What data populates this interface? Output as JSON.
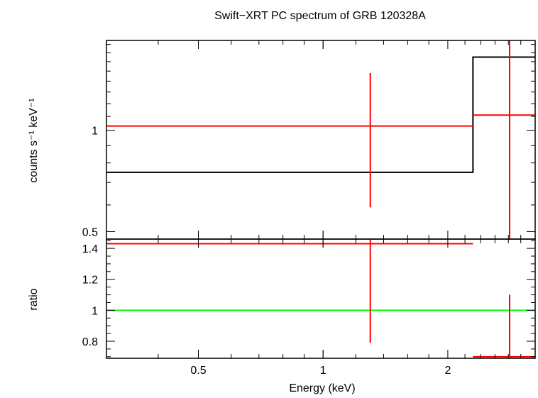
{
  "chart_data": {
    "type": "line",
    "title": "Swift−XRT PC spectrum of GRB 120328A",
    "xlabel": "Energy (keV)",
    "xscale": "log",
    "xlim": [
      0.3,
      3.25
    ],
    "x_ticks": [
      {
        "value": 0.5,
        "label": "0.5"
      },
      {
        "value": 1,
        "label": "1"
      },
      {
        "value": 2,
        "label": "2"
      }
    ],
    "panels": [
      {
        "ylabel": "counts s⁻¹ keV⁻¹",
        "yscale": "log",
        "ylim": [
          0.475,
          1.85
        ],
        "y_ticks": [
          {
            "value": 0.5,
            "label": "0.5"
          },
          {
            "value": 1,
            "label": "1"
          }
        ],
        "model": {
          "color": "#000000",
          "bins": [
            {
              "x_lo": 0.3,
              "x_hi": 2.3,
              "y": 0.75
            },
            {
              "x_lo": 2.3,
              "x_hi": 3.25,
              "y": 1.65
            }
          ]
        },
        "data": {
          "color": "#ff0000",
          "points": [
            {
              "x_lo": 0.3,
              "x_hi": 2.3,
              "x": 1.3,
              "y": 1.03,
              "y_lo": 0.59,
              "y_hi": 1.48
            },
            {
              "x_lo": 2.3,
              "x_hi": 3.25,
              "x": 2.82,
              "y": 1.11,
              "y_lo": 0.4,
              "y_hi": 1.95
            }
          ]
        }
      },
      {
        "ylabel": "ratio",
        "yscale": "linear",
        "ylim": [
          0.69,
          1.46
        ],
        "y_ticks": [
          {
            "value": 0.8,
            "label": "0.8"
          },
          {
            "value": 1,
            "label": "1"
          },
          {
            "value": 1.2,
            "label": "1.2"
          },
          {
            "value": 1.4,
            "label": "1.4"
          }
        ],
        "reference": {
          "y": 1,
          "color": "#00ff00"
        },
        "data": {
          "color": "#ff0000",
          "points": [
            {
              "x_lo": 0.3,
              "x_hi": 2.3,
              "x": 1.3,
              "y": 1.43,
              "y_lo": 0.79,
              "y_hi": 1.5
            },
            {
              "x_lo": 2.3,
              "x_hi": 3.25,
              "x": 2.82,
              "y": 0.7,
              "y_lo": 0.6,
              "y_hi": 1.1
            }
          ]
        }
      }
    ]
  }
}
